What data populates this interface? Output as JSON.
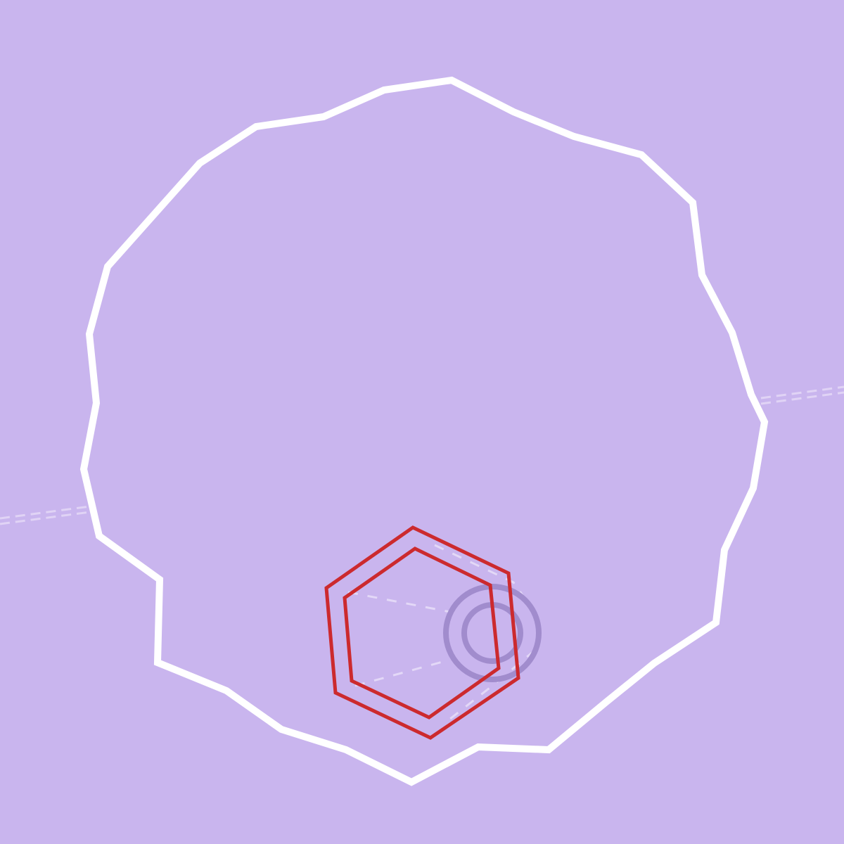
{
  "scene": {
    "description_shapes": [
      "irregular-white-outline",
      "red-hexagon-outer",
      "red-hexagon-inner",
      "purple-ring-outer",
      "purple-ring-inner",
      "dashed-guide-lines"
    ],
    "colors": {
      "background": "#c9b5ee",
      "outline": "#ffffff",
      "hexagon": "#cc2a2e",
      "ring": "#a18ccd",
      "guide": "#e8def8"
    }
  }
}
